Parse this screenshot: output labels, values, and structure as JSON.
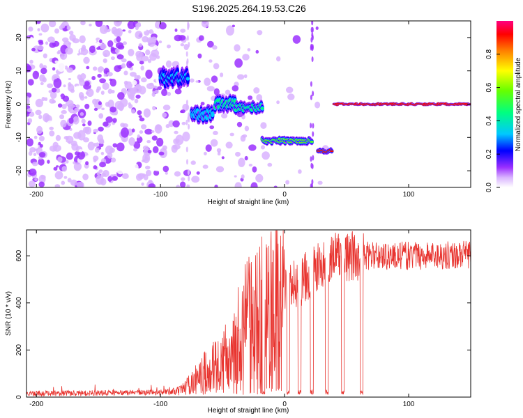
{
  "title": "S196.2025.264.19.53.C26",
  "chart_data": [
    {
      "type": "heatmap",
      "xlabel": "Height of straight line (km)",
      "ylabel": "Frequency (Hz)",
      "xlim": [
        -208,
        150
      ],
      "ylim": [
        -25,
        25
      ],
      "xticks": [
        -200,
        -100,
        0,
        100
      ],
      "yticks": [
        -20,
        -10,
        0,
        10,
        20
      ],
      "colorbar": {
        "label": "Normalized spectral amplitude",
        "range": [
          0,
          1
        ],
        "ticks": [
          0.0,
          0.2,
          0.4,
          0.6,
          0.8
        ],
        "tick_labels": [
          "0.0",
          "0.2",
          "0.4",
          "0.6",
          "0.8"
        ]
      },
      "segments": [
        {
          "x0": -100,
          "x1": -78,
          "freq": 8,
          "width": 5,
          "peak": 0.35
        },
        {
          "x0": -75,
          "x1": -58,
          "freq": -3,
          "width": 4,
          "peak": 0.4
        },
        {
          "x0": -56,
          "x1": -40,
          "freq": 0,
          "width": 4,
          "peak": 0.45
        },
        {
          "x0": -40,
          "x1": -18,
          "freq": -1,
          "width": 3,
          "peak": 0.5
        },
        {
          "x0": -18,
          "x1": 22,
          "freq": -11,
          "width": 2,
          "peak": 0.6
        },
        {
          "x0": 27,
          "x1": 38,
          "freq": -14,
          "width": 1.5,
          "peak": 0.95
        },
        {
          "x0": 40,
          "x1": 150,
          "freq": 0,
          "width": 0.8,
          "peak": 0.95
        }
      ]
    },
    {
      "type": "line",
      "xlabel": "Height of straight line (km)",
      "ylabel": "SNR (10 * v/v)",
      "xlim": [
        -208,
        150
      ],
      "ylim": [
        0,
        710
      ],
      "xticks": [
        -200,
        -100,
        0,
        100
      ],
      "yticks": [
        0,
        200,
        400,
        600
      ],
      "series_color": "#e8342f",
      "profile": [
        {
          "x": -208,
          "y": 15
        },
        {
          "x": -100,
          "y": 20
        },
        {
          "x": -85,
          "y": 25
        },
        {
          "x": -75,
          "y": 60
        },
        {
          "x": -62,
          "y": 120
        },
        {
          "x": -50,
          "y": 150
        },
        {
          "x": -40,
          "y": 250
        },
        {
          "x": -30,
          "y": 330
        },
        {
          "x": -20,
          "y": 380
        },
        {
          "x": -10,
          "y": 420
        },
        {
          "x": 0,
          "y": 450
        },
        {
          "x": 10,
          "y": 480
        },
        {
          "x": 20,
          "y": 520
        },
        {
          "x": 30,
          "y": 560
        },
        {
          "x": 40,
          "y": 600
        },
        {
          "x": 50,
          "y": 590
        },
        {
          "x": 60,
          "y": 600
        },
        {
          "x": 64,
          "y": 600
        },
        {
          "x": 100,
          "y": 600
        },
        {
          "x": 150,
          "y": 605
        }
      ],
      "dropouts": [
        -17,
        3,
        12,
        22,
        34,
        47,
        62
      ]
    }
  ]
}
